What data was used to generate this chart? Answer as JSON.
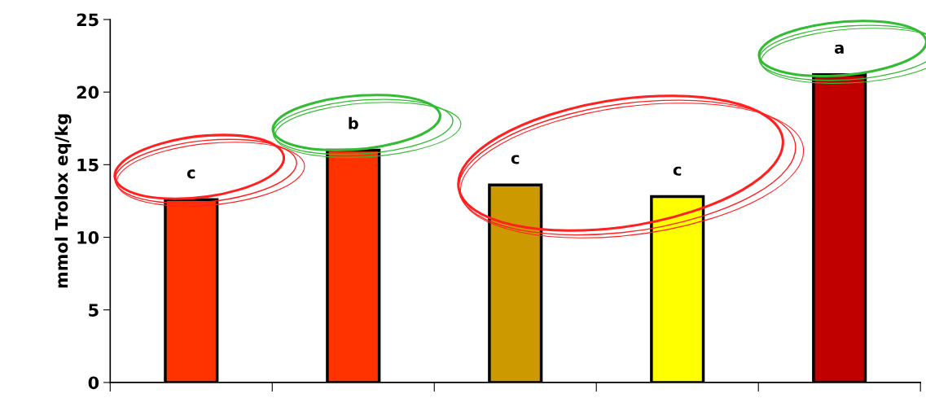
{
  "chart_data": {
    "type": "bar",
    "ylabel": "mmol Trolox eq/kg",
    "categories": [
      null,
      null,
      null,
      null,
      null
    ],
    "values": [
      12.6,
      16.0,
      13.6,
      12.8,
      21.2
    ],
    "colors": [
      "#ff3300",
      "#ff3300",
      "#cc9900",
      "#ffff00",
      "#c00000"
    ],
    "ylim": [
      0,
      25
    ],
    "yticks": [
      0,
      5,
      10,
      15,
      20,
      25
    ],
    "grid": false,
    "legend": false,
    "annotations": [
      "c",
      "b",
      "c",
      "c",
      "a"
    ]
  }
}
